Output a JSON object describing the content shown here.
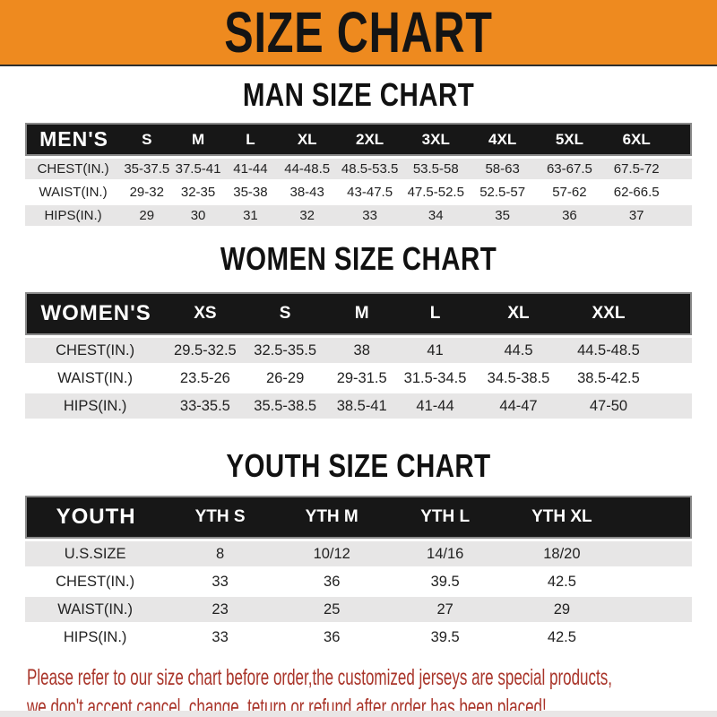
{
  "banner": {
    "title": "SIZE CHART"
  },
  "man": {
    "title": "MAN SIZE CHART",
    "header": [
      "MEN'S",
      "S",
      "M",
      "L",
      "XL",
      "2XL",
      "3XL",
      "4XL",
      "5XL",
      "6XL"
    ],
    "rows": [
      [
        "CHEST(IN.)",
        "35-37.5",
        "37.5-41",
        "41-44",
        "44-48.5",
        "48.5-53.5",
        "53.5-58",
        "58-63",
        "63-67.5",
        "67.5-72"
      ],
      [
        "WAIST(IN.)",
        "29-32",
        "32-35",
        "35-38",
        "38-43",
        "43-47.5",
        "47.5-52.5",
        "52.5-57",
        "57-62",
        "62-66.5"
      ],
      [
        "HIPS(IN.)",
        "29",
        "30",
        "31",
        "32",
        "33",
        "34",
        "35",
        "36",
        "37"
      ]
    ]
  },
  "women": {
    "title": "WOMEN SIZE CHART",
    "header": [
      "WOMEN'S",
      "XS",
      "S",
      "M",
      "L",
      "XL",
      "XXL"
    ],
    "rows": [
      [
        "CHEST(IN.)",
        "29.5-32.5",
        "32.5-35.5",
        "38",
        "41",
        "44.5",
        "44.5-48.5"
      ],
      [
        "WAIST(IN.)",
        "23.5-26",
        "26-29",
        "29-31.5",
        "31.5-34.5",
        "34.5-38.5",
        "38.5-42.5"
      ],
      [
        "HIPS(IN.)",
        "33-35.5",
        "35.5-38.5",
        "38.5-41",
        "41-44",
        "44-47",
        "47-50"
      ]
    ]
  },
  "youth": {
    "title": "YOUTH SIZE CHART",
    "header": [
      "YOUTH",
      "YTH S",
      "YTH M",
      "YTH L",
      "YTH XL"
    ],
    "rows": [
      [
        "U.S.SIZE",
        "8",
        "10/12",
        "14/16",
        "18/20"
      ],
      [
        "CHEST(IN.)",
        "33",
        "36",
        "39.5",
        "42.5"
      ],
      [
        "WAIST(IN.)",
        "23",
        "25",
        "27",
        "29"
      ],
      [
        "HIPS(IN.)",
        "33",
        "36",
        "39.5",
        "42.5"
      ]
    ]
  },
  "footer": {
    "line1": "Please refer to our size chart before order,the customized jerseys are special products,",
    "line2": "we don't accept cancel, change, teturn or refund after order has been placed!"
  },
  "colors": {
    "banner_orange": "#ee8a1f",
    "header_black": "#171717",
    "row_gray": "#e7e6e6",
    "footer_red": "#a93429"
  }
}
